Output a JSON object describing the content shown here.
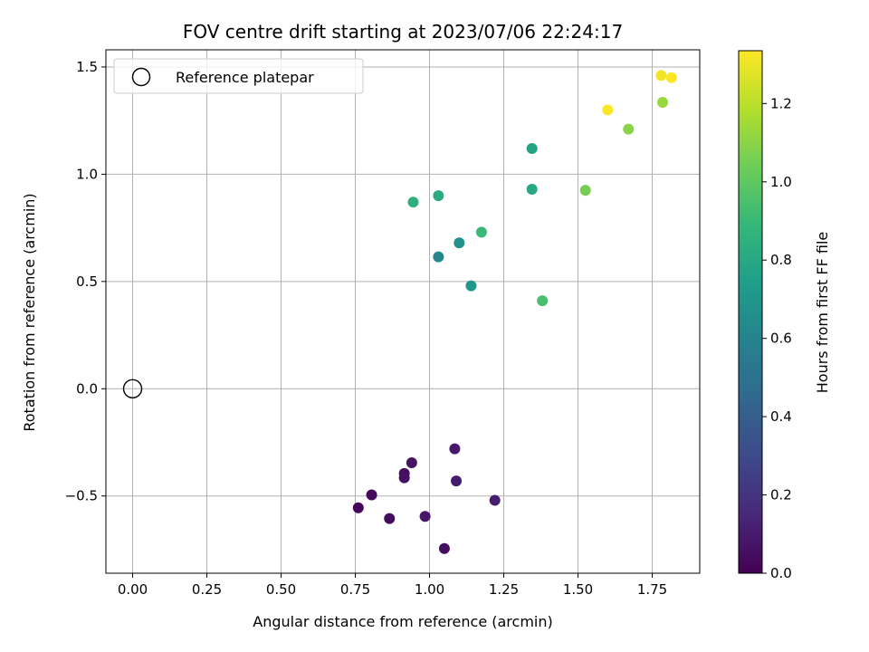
{
  "chart_data": {
    "type": "scatter",
    "title": "FOV centre drift starting at 2023/07/06 22:24:17",
    "xlabel": "Angular distance from reference (arcmin)",
    "ylabel": "Rotation from reference (arcmin)",
    "xlim": [
      -0.09,
      1.91
    ],
    "ylim": [
      -0.86,
      1.58
    ],
    "x_ticks": [
      0.0,
      0.25,
      0.5,
      0.75,
      1.0,
      1.25,
      1.5,
      1.75
    ],
    "x_tick_labels": [
      "0.00",
      "0.25",
      "0.50",
      "0.75",
      "1.00",
      "1.25",
      "1.50",
      "1.75"
    ],
    "y_ticks": [
      -0.5,
      0.0,
      0.5,
      1.0,
      1.5
    ],
    "y_tick_labels": [
      "−0.5",
      "0.0",
      "0.5",
      "1.0",
      "1.5"
    ],
    "grid": true,
    "legend": {
      "placement": "top-left",
      "entries": [
        "Reference platepar"
      ]
    },
    "colorbar": {
      "label": "Hours from first FF file",
      "range": [
        0.0,
        1.335
      ],
      "ticks": [
        0.0,
        0.2,
        0.4,
        0.6,
        0.8,
        1.0,
        1.2
      ],
      "tick_labels": [
        "0.0",
        "0.2",
        "0.4",
        "0.6",
        "0.8",
        "1.0",
        "1.2"
      ],
      "colormap": "viridis"
    },
    "reference_point": {
      "x": 0.0,
      "y": 0.0
    },
    "points": [
      {
        "x": 0.76,
        "y": -0.555,
        "hours": 0.02
      },
      {
        "x": 0.805,
        "y": -0.495,
        "hours": 0.03
      },
      {
        "x": 0.865,
        "y": -0.605,
        "hours": 0.04
      },
      {
        "x": 0.915,
        "y": -0.395,
        "hours": 0.05
      },
      {
        "x": 0.915,
        "y": -0.415,
        "hours": 0.06
      },
      {
        "x": 0.94,
        "y": -0.345,
        "hours": 0.07
      },
      {
        "x": 0.985,
        "y": -0.595,
        "hours": 0.08
      },
      {
        "x": 1.05,
        "y": -0.745,
        "hours": 0.05
      },
      {
        "x": 1.085,
        "y": -0.28,
        "hours": 0.09
      },
      {
        "x": 1.09,
        "y": -0.43,
        "hours": 0.1
      },
      {
        "x": 1.22,
        "y": -0.52,
        "hours": 0.11
      },
      {
        "x": 1.03,
        "y": 0.615,
        "hours": 0.62
      },
      {
        "x": 1.1,
        "y": 0.68,
        "hours": 0.67
      },
      {
        "x": 1.14,
        "y": 0.48,
        "hours": 0.7
      },
      {
        "x": 0.945,
        "y": 0.87,
        "hours": 0.84
      },
      {
        "x": 1.03,
        "y": 0.9,
        "hours": 0.82
      },
      {
        "x": 1.175,
        "y": 0.73,
        "hours": 0.9
      },
      {
        "x": 1.345,
        "y": 1.12,
        "hours": 0.78
      },
      {
        "x": 1.345,
        "y": 0.93,
        "hours": 0.8
      },
      {
        "x": 1.38,
        "y": 0.41,
        "hours": 0.94
      },
      {
        "x": 1.525,
        "y": 0.925,
        "hours": 1.06
      },
      {
        "x": 1.6,
        "y": 1.3,
        "hours": 1.33
      },
      {
        "x": 1.67,
        "y": 1.21,
        "hours": 1.1
      },
      {
        "x": 1.785,
        "y": 1.335,
        "hours": 1.13
      },
      {
        "x": 1.78,
        "y": 1.46,
        "hours": 1.31
      },
      {
        "x": 1.815,
        "y": 1.45,
        "hours": 1.33
      }
    ]
  }
}
